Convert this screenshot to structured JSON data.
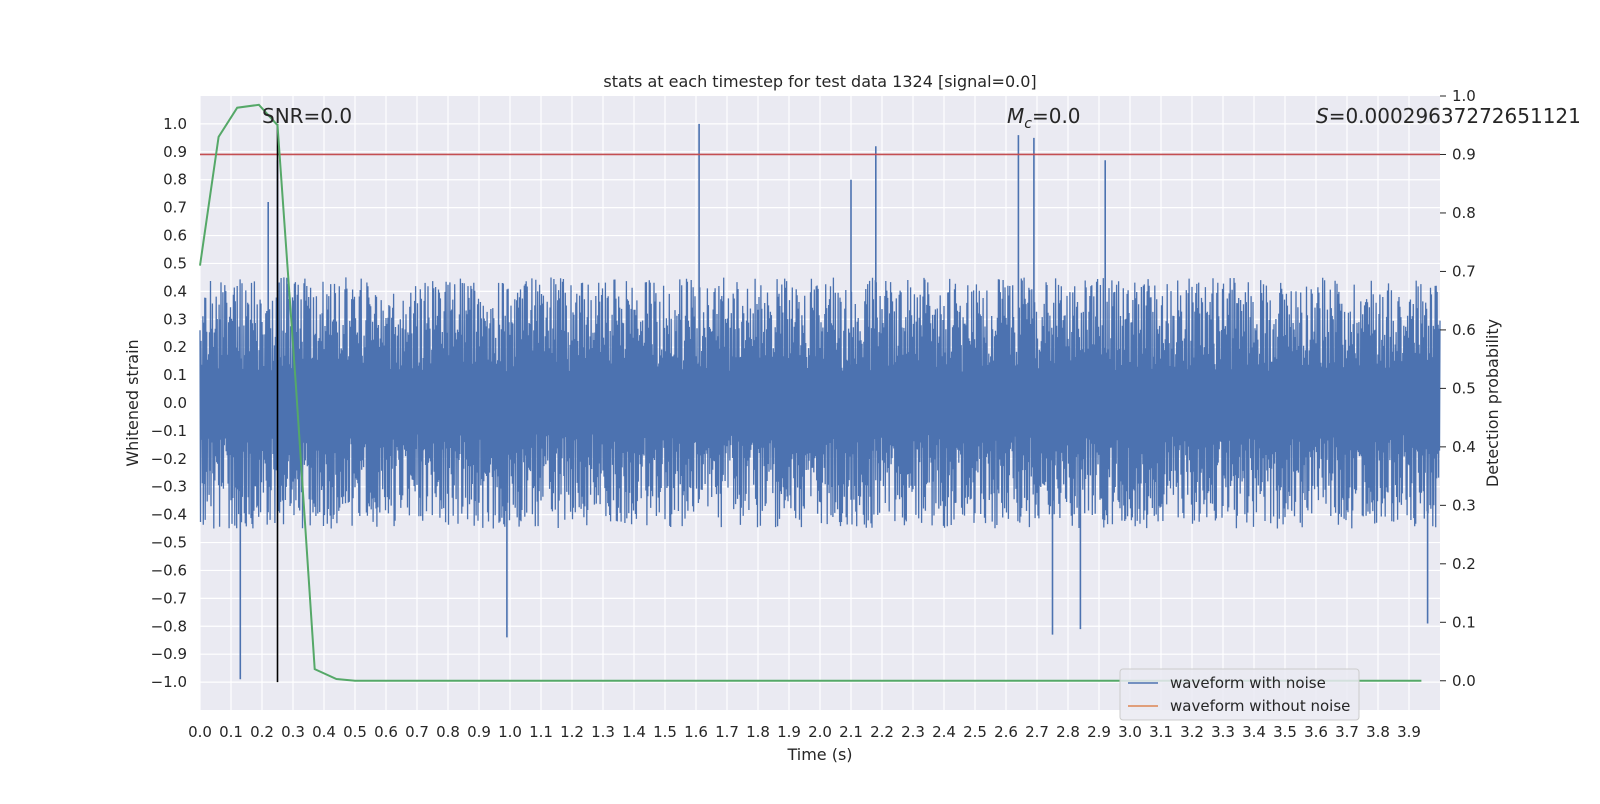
{
  "chart_data": {
    "type": "line",
    "title": "stats at each timestep for test data 1324 [signal=0.0]",
    "xlabel": "Time (s)",
    "ylabel": "Whitened strain",
    "y2label": "Detection probability",
    "xlim": [
      0.0,
      4.0
    ],
    "ylim": [
      -1.1,
      1.1
    ],
    "y2lim": [
      -0.05,
      1.0
    ],
    "grid": true,
    "x_ticks": [
      "0.0",
      "0.1",
      "0.2",
      "0.3",
      "0.4",
      "0.5",
      "0.6",
      "0.7",
      "0.8",
      "0.9",
      "1.0",
      "1.1",
      "1.2",
      "1.3",
      "1.4",
      "1.5",
      "1.6",
      "1.7",
      "1.8",
      "1.9",
      "2.0",
      "2.1",
      "2.2",
      "2.3",
      "2.4",
      "2.5",
      "2.6",
      "2.7",
      "2.8",
      "2.9",
      "3.0",
      "3.1",
      "3.2",
      "3.3",
      "3.4",
      "3.5",
      "3.6",
      "3.7",
      "3.8",
      "3.9"
    ],
    "y_ticks": [
      "1.0",
      "0.9",
      "0.8",
      "0.7",
      "0.6",
      "0.5",
      "0.4",
      "0.3",
      "0.2",
      "0.1",
      "0.0",
      "−0.1",
      "−0.2",
      "−0.3",
      "−0.4",
      "−0.5",
      "−0.6",
      "−0.7",
      "−0.8",
      "−0.9",
      "−1.0"
    ],
    "y2_ticks": [
      "1.0",
      "0.9",
      "0.8",
      "0.7",
      "0.6",
      "0.5",
      "0.4",
      "0.3",
      "0.2",
      "0.1",
      "0.0"
    ],
    "annotations": {
      "snr": "SNR=0.0",
      "mc_symbol": "M",
      "mc_sub": "c",
      "mc_value": "=0.0",
      "s_symbol": "S",
      "s_value": "=0.00029637272651121"
    },
    "legend": {
      "placement": "lower-right",
      "entries": [
        {
          "label": "waveform with noise",
          "color": "#4c72b0"
        },
        {
          "label": "waveform without noise",
          "color": "#dd8452"
        }
      ]
    },
    "threshold": {
      "axis": "y2",
      "value": 0.9,
      "color": "#c44e52"
    },
    "event_marker": {
      "x": 0.25,
      "color": "#000000"
    },
    "waveform_noise": {
      "color": "#4c72b0",
      "envelope_abs": 0.45,
      "peaks": [
        {
          "x": 0.13,
          "y": -0.99
        },
        {
          "x": 0.22,
          "y": 0.72
        },
        {
          "x": 0.25,
          "y": 0.87
        },
        {
          "x": 0.99,
          "y": -0.84
        },
        {
          "x": 1.61,
          "y": 1.0
        },
        {
          "x": 2.1,
          "y": 0.8
        },
        {
          "x": 2.18,
          "y": 0.92
        },
        {
          "x": 2.64,
          "y": 0.96
        },
        {
          "x": 2.69,
          "y": 0.95
        },
        {
          "x": 2.75,
          "y": -0.83
        },
        {
          "x": 2.84,
          "y": -0.81
        },
        {
          "x": 2.92,
          "y": 0.87
        },
        {
          "x": 3.96,
          "y": -0.79
        }
      ]
    },
    "detection_probability": {
      "color": "#55a868",
      "x": [
        0.0,
        0.06,
        0.12,
        0.19,
        0.25,
        0.31,
        0.37,
        0.44,
        0.5,
        1.0,
        2.0,
        3.0,
        3.94
      ],
      "y": [
        0.71,
        0.93,
        0.98,
        0.985,
        0.95,
        0.5,
        0.02,
        0.003,
        0.0,
        0.0,
        0.0,
        0.0,
        0.0
      ]
    }
  }
}
